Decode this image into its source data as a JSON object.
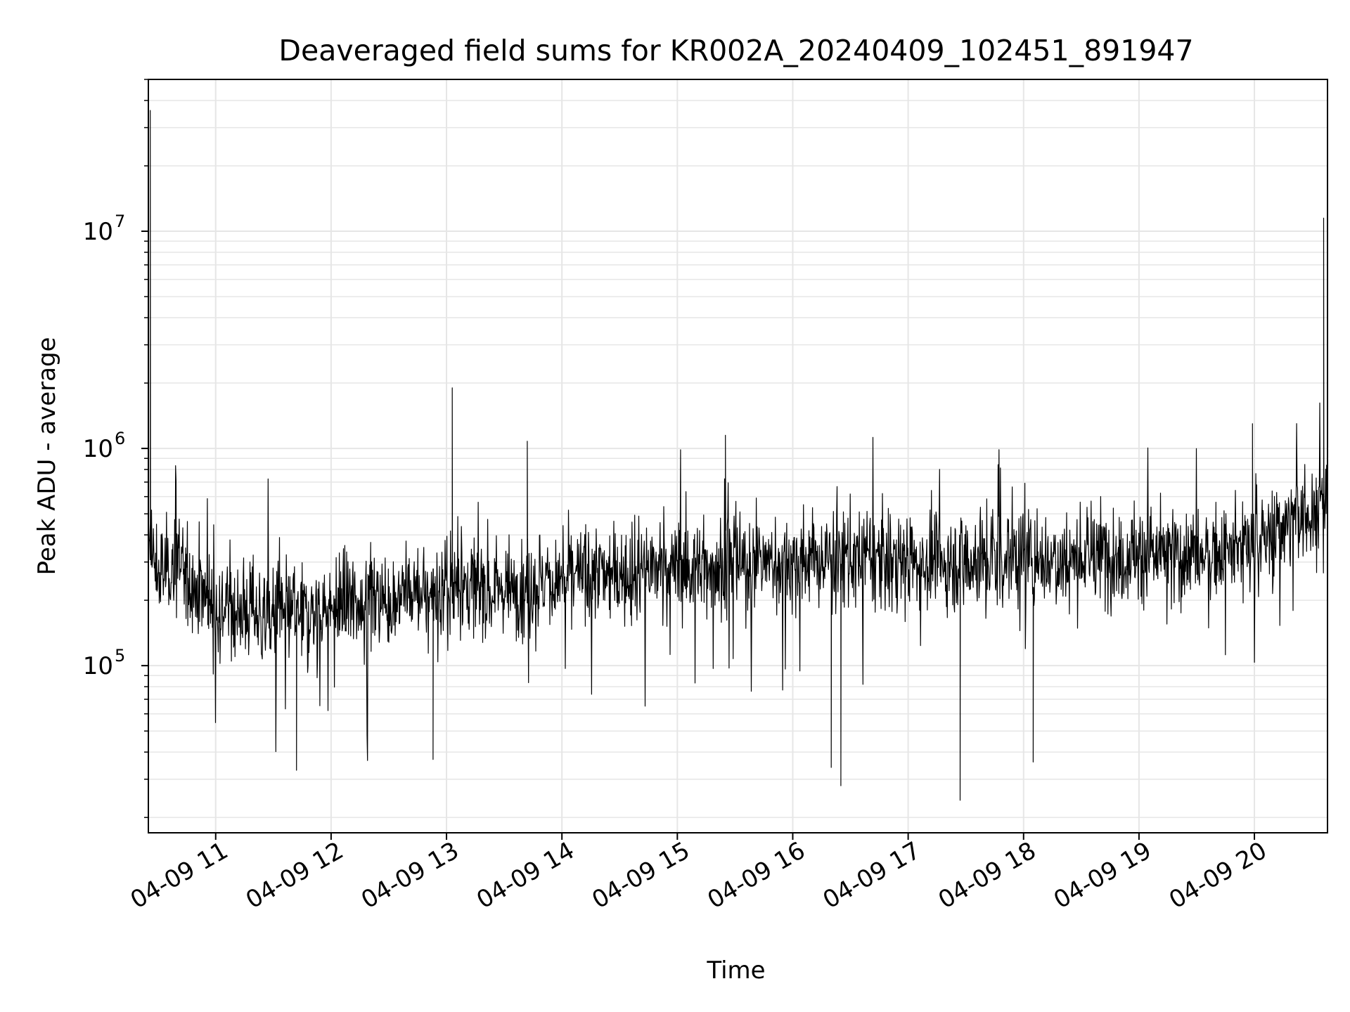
{
  "chart_data": {
    "type": "line",
    "title": "Deaveraged field sums for KR002A_20240409_102451_891947",
    "xlabel": "Time",
    "ylabel": "Peak ADU - average",
    "y_scale": "log",
    "ylim": [
      17000,
      50000000
    ],
    "xlim": [
      "2024-04-09 10:25",
      "2024-04-09 20:38"
    ],
    "x_ticks": [
      "2024-04-09 11:00",
      "2024-04-09 12:00",
      "2024-04-09 13:00",
      "2024-04-09 14:00",
      "2024-04-09 15:00",
      "2024-04-09 16:00",
      "2024-04-09 17:00",
      "2024-04-09 18:00",
      "2024-04-09 19:00",
      "2024-04-09 20:00"
    ],
    "x_tick_labels": [
      "04-09 11",
      "04-09 12",
      "04-09 13",
      "04-09 14",
      "04-09 15",
      "04-09 16",
      "04-09 17",
      "04-09 18",
      "04-09 19",
      "04-09 20"
    ],
    "y_ticks": [
      100000,
      1000000,
      10000000
    ],
    "y_tick_labels": [
      {
        "base": "10",
        "exp": "5"
      },
      {
        "base": "10",
        "exp": "6"
      },
      {
        "base": "10",
        "exp": "7"
      }
    ],
    "grid": true,
    "line_color": "#000000",
    "grid_color": "#e6e6e6",
    "series": [
      {
        "x": [
          "2024-04-09 10:25",
          "2024-04-09 10:30",
          "2024-04-09 10:40",
          "2024-04-09 10:50",
          "2024-04-09 11:00",
          "2024-04-09 11:15",
          "2024-04-09 11:30",
          "2024-04-09 11:45",
          "2024-04-09 12:00",
          "2024-04-09 12:20",
          "2024-04-09 12:40",
          "2024-04-09 13:00",
          "2024-04-09 13:03",
          "2024-04-09 13:20",
          "2024-04-09 13:40",
          "2024-04-09 14:00",
          "2024-04-09 14:20",
          "2024-04-09 14:40",
          "2024-04-09 15:00",
          "2024-04-09 15:20",
          "2024-04-09 15:40",
          "2024-04-09 16:00",
          "2024-04-09 16:20",
          "2024-04-09 16:40",
          "2024-04-09 17:00",
          "2024-04-09 17:20",
          "2024-04-09 17:40",
          "2024-04-09 18:00",
          "2024-04-09 18:20",
          "2024-04-09 18:40",
          "2024-04-09 19:00",
          "2024-04-09 19:20",
          "2024-04-09 19:40",
          "2024-04-09 20:00",
          "2024-04-09 20:15",
          "2024-04-09 20:30",
          "2024-04-09 20:38"
        ],
        "y": [
          350000,
          260000,
          300000,
          230000,
          190000,
          180000,
          170000,
          175000,
          185000,
          200000,
          210000,
          220000,
          230000,
          225000,
          235000,
          250000,
          265000,
          275000,
          285000,
          290000,
          295000,
          300000,
          305000,
          310000,
          305000,
          300000,
          310000,
          320000,
          315000,
          320000,
          325000,
          320000,
          330000,
          350000,
          450000,
          520000,
          600000
        ],
        "spikes": [
          {
            "x": "2024-04-09 10:26",
            "y": 36000000
          },
          {
            "x": "2024-04-09 13:03",
            "y": 1900000
          },
          {
            "x": "2024-04-09 13:42",
            "y": 1080000
          },
          {
            "x": "2024-04-09 15:25",
            "y": 1150000
          },
          {
            "x": "2024-04-09 19:59",
            "y": 1300000
          },
          {
            "x": "2024-04-09 20:36",
            "y": 11500000
          }
        ],
        "dips": [
          {
            "x": "2024-04-09 11:42",
            "y": 33000
          },
          {
            "x": "2024-04-09 12:53",
            "y": 37000
          },
          {
            "x": "2024-04-09 16:20",
            "y": 34000
          },
          {
            "x": "2024-04-09 16:25",
            "y": 28000
          },
          {
            "x": "2024-04-09 17:27",
            "y": 24000
          },
          {
            "x": "2024-04-09 18:05",
            "y": 36000
          }
        ]
      }
    ]
  }
}
